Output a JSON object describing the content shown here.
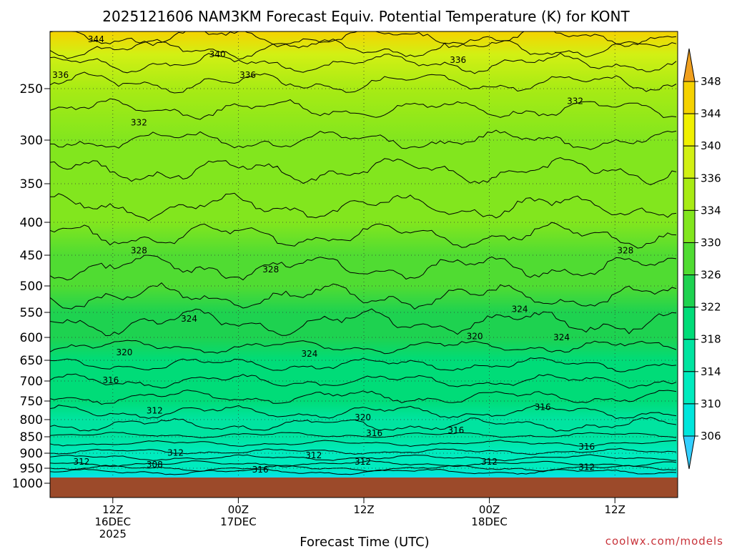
{
  "title": "2025121606 NAM3KM Forecast Equiv. Potential Temperature (K) for KONT",
  "credit": "coolwx.com/models",
  "chart_data": {
    "type": "heatmap",
    "title": "2025121606 NAM3KM Forecast Equiv. Potential Temperature (K) for KONT",
    "xlabel": "Forecast Time (UTC)",
    "ylabel": "",
    "x_range": [
      6,
      66
    ],
    "y_range": [
      1000,
      200
    ],
    "y_ticks": [
      "250",
      "300",
      "350",
      "400",
      "450",
      "500",
      "550",
      "600",
      "650",
      "700",
      "750",
      "800",
      "850",
      "900",
      "950",
      "1000"
    ],
    "x_ticks": [
      {
        "h": 12,
        "lines": [
          "12Z",
          "16DEC",
          "2025"
        ]
      },
      {
        "h": 24,
        "lines": [
          "00Z",
          "17DEC",
          ""
        ]
      },
      {
        "h": 36,
        "lines": [
          "12Z",
          "",
          ""
        ]
      },
      {
        "h": 48,
        "lines": [
          "00Z",
          "18DEC",
          ""
        ]
      },
      {
        "h": 60,
        "lines": [
          "12Z",
          "",
          ""
        ]
      }
    ],
    "colorbar": {
      "levels": [
        "306",
        "310",
        "314",
        "318",
        "322",
        "326",
        "330",
        "334",
        "336",
        "340",
        "344",
        "348"
      ],
      "colors": [
        "#33cfff",
        "#00e6dc",
        "#00ebbe",
        "#00e4a0",
        "#00dc78",
        "#1ed250",
        "#50dc32",
        "#82e61e",
        "#a8eb14",
        "#d2f014",
        "#f0f000",
        "#f5d200",
        "#f0a01e"
      ]
    },
    "profile": [
      {
        "p": 1000,
        "theta": 300
      },
      {
        "p": 970,
        "theta": 306
      },
      {
        "p": 950,
        "theta": 310
      },
      {
        "p": 900,
        "theta": 312
      },
      {
        "p": 850,
        "theta": 314
      },
      {
        "p": 800,
        "theta": 317
      },
      {
        "p": 750,
        "theta": 318
      },
      {
        "p": 700,
        "theta": 320
      },
      {
        "p": 650,
        "theta": 321
      },
      {
        "p": 600,
        "theta": 323
      },
      {
        "p": 550,
        "theta": 325
      },
      {
        "p": 500,
        "theta": 327
      },
      {
        "p": 450,
        "theta": 328
      },
      {
        "p": 400,
        "theta": 330
      },
      {
        "p": 350,
        "theta": 331
      },
      {
        "p": 300,
        "theta": 332
      },
      {
        "p": 250,
        "theta": 334
      },
      {
        "p": 220,
        "theta": 336
      },
      {
        "p": 200,
        "theta": 344
      }
    ],
    "contour_labels": [
      {
        "t": "344",
        "h": 10.4,
        "p": 207
      },
      {
        "t": "340",
        "h": 22.0,
        "p": 220
      },
      {
        "t": "336",
        "h": 7.0,
        "p": 238
      },
      {
        "t": "336",
        "h": 24.9,
        "p": 238
      },
      {
        "t": "336",
        "h": 45.0,
        "p": 225
      },
      {
        "t": "332",
        "h": 14.5,
        "p": 283
      },
      {
        "t": "332",
        "h": 56.2,
        "p": 262
      },
      {
        "t": "328",
        "h": 14.5,
        "p": 443
      },
      {
        "t": "328",
        "h": 27.1,
        "p": 473
      },
      {
        "t": "328",
        "h": 61.0,
        "p": 443
      },
      {
        "t": "324",
        "h": 19.3,
        "p": 563
      },
      {
        "t": "324",
        "h": 30.8,
        "p": 636
      },
      {
        "t": "324",
        "h": 50.9,
        "p": 544
      },
      {
        "t": "324",
        "h": 54.9,
        "p": 600
      },
      {
        "t": "320",
        "h": 13.1,
        "p": 633
      },
      {
        "t": "320",
        "h": 46.6,
        "p": 598
      },
      {
        "t": "320",
        "h": 35.9,
        "p": 794
      },
      {
        "t": "316",
        "h": 11.8,
        "p": 698
      },
      {
        "t": "316",
        "h": 53.1,
        "p": 766
      },
      {
        "t": "316",
        "h": 37.0,
        "p": 840
      },
      {
        "t": "316",
        "h": 44.8,
        "p": 831
      },
      {
        "t": "316",
        "h": 57.3,
        "p": 880
      },
      {
        "t": "316",
        "h": 26.1,
        "p": 955
      },
      {
        "t": "312",
        "h": 16.0,
        "p": 776
      },
      {
        "t": "312",
        "h": 18.0,
        "p": 899
      },
      {
        "t": "312",
        "h": 31.2,
        "p": 907
      },
      {
        "t": "312",
        "h": 35.9,
        "p": 928
      },
      {
        "t": "312",
        "h": 9.0,
        "p": 929
      },
      {
        "t": "312",
        "h": 48.0,
        "p": 929
      },
      {
        "t": "312",
        "h": 57.3,
        "p": 947
      },
      {
        "t": "308",
        "h": 16.0,
        "p": 938
      }
    ]
  }
}
